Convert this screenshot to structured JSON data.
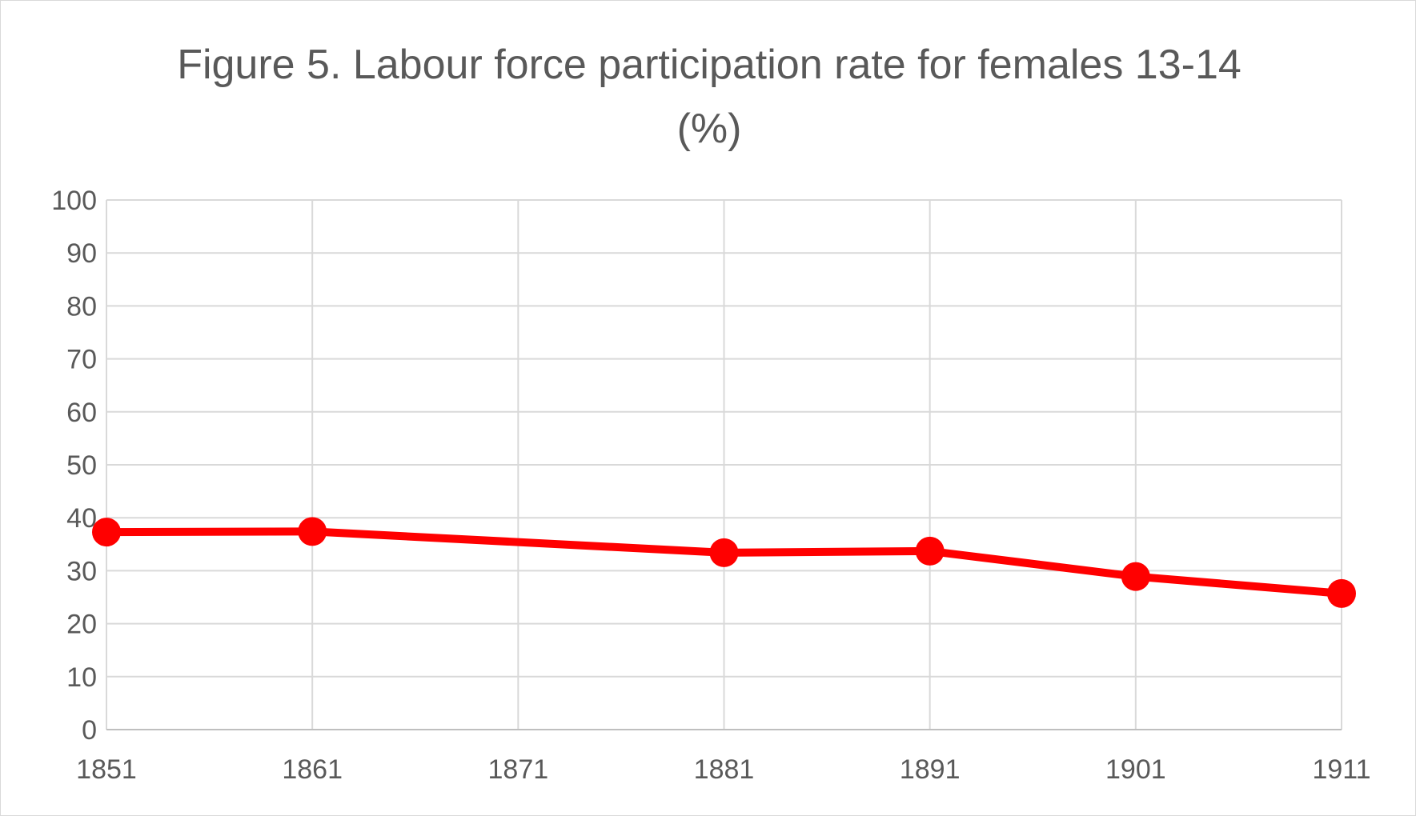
{
  "chart_data": {
    "type": "line",
    "title": "Figure 5. Labour force participation rate for females 13-14 (%)",
    "xlabel": "",
    "ylabel": "",
    "categories": [
      "1851",
      "1861",
      "1871",
      "1881",
      "1891",
      "1901",
      "1911"
    ],
    "series": [
      {
        "values": [
          37.3,
          37.4,
          null,
          33.4,
          33.7,
          28.9,
          25.7
        ],
        "color": "#ff0000"
      }
    ],
    "ylim": [
      0,
      100
    ],
    "y_ticks": [
      0,
      10,
      20,
      30,
      40,
      50,
      60,
      70,
      80,
      90,
      100
    ],
    "grid": "both",
    "legend": "none",
    "marker": "circle"
  }
}
